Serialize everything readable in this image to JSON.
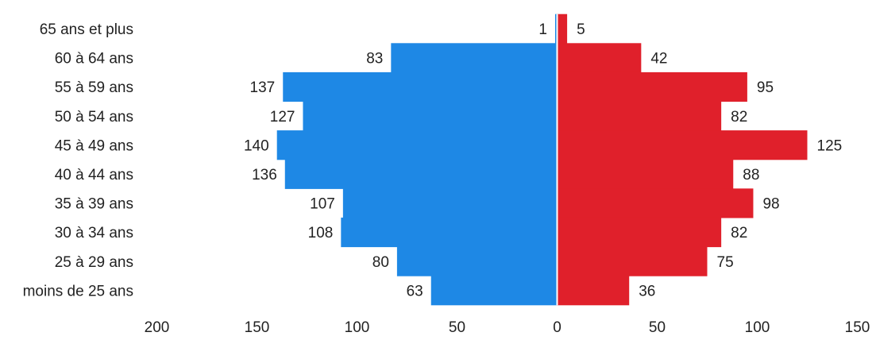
{
  "chart_data": {
    "type": "bar",
    "orientation": "horizontal-pyramid",
    "categories": [
      "65 ans et plus",
      "60 à 64 ans",
      "55 à 59 ans",
      "50 à 54 ans",
      "45 à 49 ans",
      "40 à 44 ans",
      "35 à 39 ans",
      "30 à 34 ans",
      "25 à 29 ans",
      "moins de 25 ans"
    ],
    "series": [
      {
        "side": "left",
        "color": "#1e88e5",
        "values": [
          1,
          83,
          137,
          127,
          140,
          136,
          107,
          108,
          80,
          63
        ]
      },
      {
        "side": "right",
        "color": "#e0202b",
        "values": [
          5,
          42,
          95,
          82,
          125,
          88,
          98,
          82,
          75,
          36
        ]
      }
    ],
    "x_ticks": [
      {
        "value": -200,
        "label": "200"
      },
      {
        "value": -150,
        "label": "150"
      },
      {
        "value": -100,
        "label": "100"
      },
      {
        "value": -50,
        "label": "50"
      },
      {
        "value": 0,
        "label": "0"
      },
      {
        "value": 50,
        "label": "50"
      },
      {
        "value": 100,
        "label": "100"
      },
      {
        "value": 150,
        "label": "150"
      }
    ],
    "xlim": [
      -200,
      150
    ],
    "title": "",
    "xlabel": "",
    "ylabel": "",
    "grid": false,
    "legend": "none"
  }
}
